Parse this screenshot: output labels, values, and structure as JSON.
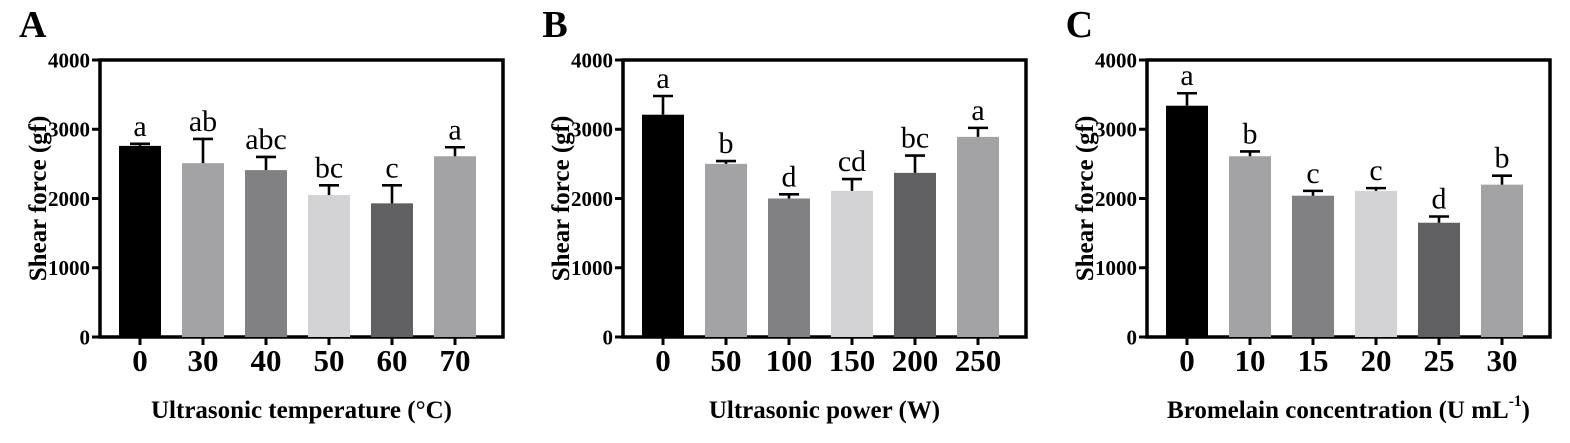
{
  "figure": {
    "background": "#ffffff",
    "axis_color": "#000000"
  },
  "chart_data": [
    {
      "type": "bar",
      "panel_label": "A",
      "title": "",
      "ylabel": "Shear force (gf)",
      "xlabel": "Ultrasonic temperature (°C)",
      "xlabel_sup": "",
      "xlabel_tail": "",
      "categories": [
        "0",
        "30",
        "40",
        "50",
        "60",
        "70"
      ],
      "values": [
        2760,
        2510,
        2410,
        2050,
        1930,
        2610
      ],
      "errors": [
        30,
        350,
        190,
        140,
        260,
        130
      ],
      "sig_letters": [
        "a",
        "ab",
        "abc",
        "bc",
        "c",
        "a"
      ],
      "bar_colors": [
        "#000000",
        "#a3a3a6",
        "#818184",
        "#d3d3d5",
        "#606062",
        "#a3a3a6"
      ],
      "ylim": [
        0,
        4000
      ],
      "yticks": [
        0,
        1000,
        2000,
        3000,
        4000
      ],
      "grid": "off",
      "legend": "none"
    },
    {
      "type": "bar",
      "panel_label": "B",
      "title": "",
      "ylabel": "Shear force (gf)",
      "xlabel": "Ultrasonic power (W)",
      "xlabel_sup": "",
      "xlabel_tail": "",
      "categories": [
        "0",
        "50",
        "100",
        "150",
        "200",
        "250"
      ],
      "values": [
        3210,
        2500,
        2000,
        2110,
        2370,
        2890
      ],
      "errors": [
        270,
        40,
        60,
        170,
        250,
        130
      ],
      "sig_letters": [
        "a",
        "b",
        "d",
        "cd",
        "bc",
        "a"
      ],
      "bar_colors": [
        "#000000",
        "#a3a3a6",
        "#818184",
        "#d3d3d5",
        "#606062",
        "#a3a3a6"
      ],
      "ylim": [
        0,
        4000
      ],
      "yticks": [
        0,
        1000,
        2000,
        3000,
        4000
      ],
      "grid": "off",
      "legend": "none"
    },
    {
      "type": "bar",
      "panel_label": "C",
      "title": "",
      "ylabel": "Shear force (gf)",
      "xlabel": "Bromelain concentration (U mL",
      "xlabel_sup": "-1",
      "xlabel_tail": ")",
      "categories": [
        "0",
        "10",
        "15",
        "20",
        "25",
        "30"
      ],
      "values": [
        3340,
        2610,
        2040,
        2110,
        1650,
        2200
      ],
      "errors": [
        180,
        70,
        70,
        40,
        90,
        130
      ],
      "sig_letters": [
        "a",
        "b",
        "c",
        "c",
        "d",
        "b"
      ],
      "bar_colors": [
        "#000000",
        "#a3a3a6",
        "#818184",
        "#d3d3d5",
        "#606062",
        "#a3a3a6"
      ],
      "ylim": [
        0,
        4000
      ],
      "yticks": [
        0,
        1000,
        2000,
        3000,
        4000
      ],
      "grid": "off",
      "legend": "none"
    }
  ]
}
